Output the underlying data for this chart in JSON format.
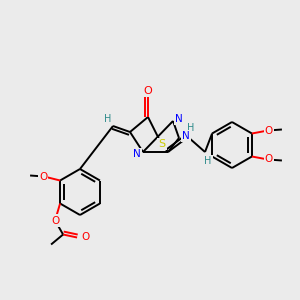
{
  "bg_color": "#ebebeb",
  "atom_colors": {
    "C": "#000000",
    "H": "#2e8b8b",
    "N": "#0000ff",
    "O": "#ff0000",
    "S": "#cccc00"
  },
  "bond_color": "#000000",
  "bond_lw": 1.4,
  "figsize": [
    3.0,
    3.0
  ],
  "dpi": 100
}
